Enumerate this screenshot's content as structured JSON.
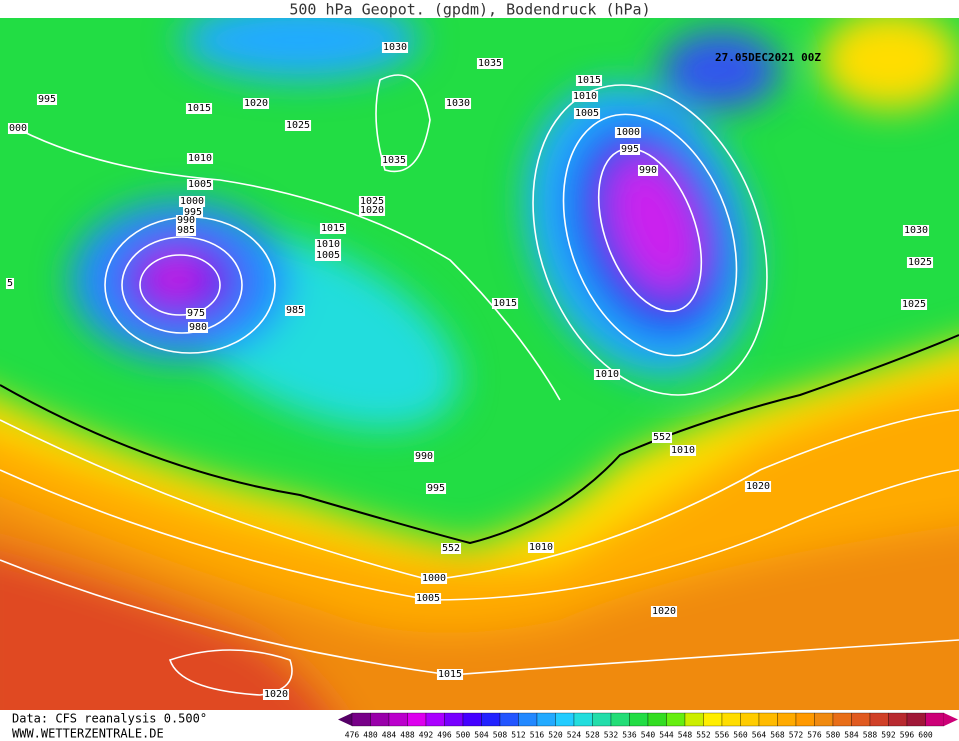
{
  "header": {
    "title": "500 hPa Geopot. (gpdm), Bodendruck (hPa)",
    "timestamp": "27.05DEC2021 00Z"
  },
  "isobar_labels": [
    "1030",
    "1035",
    "995",
    "1015",
    "1020",
    "1025",
    "1030",
    "000",
    "1010",
    "1035",
    "1005",
    "1000",
    "995",
    "990",
    "985",
    "1025",
    "1020",
    "1015",
    "1010",
    "1005",
    "5",
    "975",
    "980",
    "985",
    "1015",
    "1015",
    "1010",
    "1005",
    "1000",
    "995",
    "990",
    "1030",
    "1025",
    "1025",
    "1010",
    "552",
    "1010",
    "990",
    "995",
    "1020",
    "552",
    "1010",
    "1000",
    "1005",
    "1020",
    "1015",
    "1020"
  ],
  "footer": {
    "source": "Data: CFS reanalysis 0.500°",
    "website": "WWW.WETTERZENTRALE.DE"
  },
  "color_scale": [
    476,
    480,
    484,
    488,
    492,
    496,
    500,
    504,
    508,
    512,
    516,
    520,
    524,
    528,
    532,
    536,
    540,
    544,
    548,
    552,
    556,
    560,
    564,
    568,
    572,
    576,
    580,
    584,
    588,
    592,
    596,
    600
  ]
}
